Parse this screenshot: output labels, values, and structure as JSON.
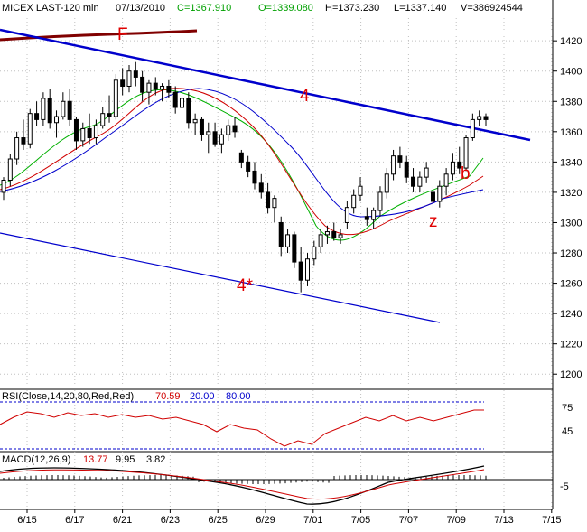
{
  "header": {
    "symbol": "MICEX LAST-120 min",
    "date": "07/13/2010",
    "close": "C=1367.910",
    "open": "O=1339.080",
    "high": "H=1373.230",
    "low": "L=1337.140",
    "volume": "V=386924544"
  },
  "colors": {
    "background": "#ffffff",
    "grid": "#c0c0c0",
    "candle": "#000000",
    "ma_green": "#00b000",
    "ma_red": "#d00000",
    "ma_blue": "#0000cc",
    "trendline": "#0000cc",
    "annotation": "#e00000",
    "f_line": "#800000",
    "rsi_line": "#d00000",
    "rsi_20": "#0000cc",
    "rsi_80": "#0000cc"
  },
  "rsi": {
    "label_prefix": "RSI(Close,14,20,80,Red,Red)",
    "value": "70.59",
    "lower": "20.00",
    "upper": "80.00",
    "ticks": [
      "75",
      "45"
    ]
  },
  "macd": {
    "label_prefix": "MACD(12,26,9)",
    "value": "13.77",
    "signal": "9.95",
    "hist": "3.82",
    "ticks": [
      "-5"
    ]
  },
  "chart_data": {
    "type": "candlestick",
    "ylim": [
      1190,
      1435
    ],
    "yticks": [
      1200,
      1220,
      1240,
      1260,
      1280,
      1300,
      1320,
      1340,
      1360,
      1380,
      1400,
      1420
    ],
    "xticks": [
      "6/15",
      "6/17",
      "6/21",
      "6/23",
      "6/25",
      "6/29",
      "7/01",
      "7/05",
      "7/07",
      "7/09",
      "7/13",
      "7/15"
    ],
    "annotations": [
      {
        "text": "F"
      },
      {
        "text": "4"
      },
      {
        "text": "4*"
      },
      {
        "text": "b"
      },
      {
        "text": "z"
      }
    ],
    "candles": [
      [
        1320,
        1330,
        1315,
        1328
      ],
      [
        1328,
        1345,
        1324,
        1342
      ],
      [
        1342,
        1360,
        1338,
        1356
      ],
      [
        1356,
        1368,
        1348,
        1352
      ],
      [
        1352,
        1375,
        1349,
        1372
      ],
      [
        1372,
        1380,
        1364,
        1368
      ],
      [
        1368,
        1386,
        1364,
        1382
      ],
      [
        1382,
        1388,
        1362,
        1366
      ],
      [
        1366,
        1374,
        1356,
        1370
      ],
      [
        1370,
        1386,
        1368,
        1380
      ],
      [
        1380,
        1388,
        1364,
        1368
      ],
      [
        1368,
        1370,
        1348,
        1354
      ],
      [
        1354,
        1366,
        1350,
        1362
      ],
      [
        1362,
        1372,
        1352,
        1356
      ],
      [
        1356,
        1368,
        1352,
        1364
      ],
      [
        1364,
        1376,
        1362,
        1372
      ],
      [
        1372,
        1384,
        1366,
        1370
      ],
      [
        1370,
        1398,
        1368,
        1394
      ],
      [
        1394,
        1402,
        1384,
        1390
      ],
      [
        1390,
        1404,
        1386,
        1400
      ],
      [
        1400,
        1406,
        1390,
        1396
      ],
      [
        1396,
        1400,
        1380,
        1386
      ],
      [
        1386,
        1394,
        1378,
        1392
      ],
      [
        1392,
        1396,
        1384,
        1388
      ],
      [
        1388,
        1392,
        1380,
        1390
      ],
      [
        1390,
        1394,
        1382,
        1386
      ],
      [
        1386,
        1390,
        1372,
        1376
      ],
      [
        1376,
        1386,
        1370,
        1382
      ],
      [
        1382,
        1386,
        1362,
        1366
      ],
      [
        1366,
        1372,
        1358,
        1368
      ],
      [
        1368,
        1370,
        1354,
        1358
      ],
      [
        1358,
        1366,
        1346,
        1360
      ],
      [
        1360,
        1366,
        1350,
        1352
      ],
      [
        1352,
        1362,
        1346,
        1358
      ],
      [
        1358,
        1368,
        1354,
        1364
      ],
      [
        1364,
        1370,
        1356,
        1360
      ],
      [
        1346,
        1348,
        1336,
        1340
      ],
      [
        1340,
        1344,
        1330,
        1334
      ],
      [
        1334,
        1340,
        1322,
        1326
      ],
      [
        1326,
        1332,
        1316,
        1320
      ],
      [
        1320,
        1326,
        1306,
        1310
      ],
      [
        1310,
        1318,
        1300,
        1316
      ],
      [
        1300,
        1304,
        1278,
        1284
      ],
      [
        1284,
        1296,
        1280,
        1292
      ],
      [
        1292,
        1294,
        1270,
        1274
      ],
      [
        1274,
        1284,
        1254,
        1262
      ],
      [
        1262,
        1280,
        1258,
        1276
      ],
      [
        1276,
        1288,
        1272,
        1284
      ],
      [
        1284,
        1296,
        1280,
        1292
      ],
      [
        1292,
        1298,
        1286,
        1294
      ],
      [
        1294,
        1300,
        1288,
        1290
      ],
      [
        1290,
        1296,
        1286,
        1292
      ],
      [
        1300,
        1314,
        1296,
        1310
      ],
      [
        1310,
        1322,
        1306,
        1318
      ],
      [
        1318,
        1330,
        1314,
        1324
      ],
      [
        1304,
        1310,
        1298,
        1302
      ],
      [
        1302,
        1310,
        1296,
        1308
      ],
      [
        1308,
        1324,
        1304,
        1320
      ],
      [
        1320,
        1336,
        1316,
        1332
      ],
      [
        1332,
        1348,
        1328,
        1344
      ],
      [
        1344,
        1350,
        1336,
        1340
      ],
      [
        1340,
        1344,
        1326,
        1330
      ],
      [
        1330,
        1336,
        1320,
        1324
      ],
      [
        1324,
        1334,
        1320,
        1330
      ],
      [
        1330,
        1340,
        1326,
        1336
      ],
      [
        1320,
        1324,
        1310,
        1314
      ],
      [
        1314,
        1328,
        1310,
        1324
      ],
      [
        1324,
        1336,
        1318,
        1332
      ],
      [
        1332,
        1346,
        1328,
        1340
      ],
      [
        1340,
        1350,
        1332,
        1336
      ],
      [
        1336,
        1358,
        1334,
        1356
      ],
      [
        1356,
        1372,
        1354,
        1368
      ],
      [
        1368,
        1374,
        1364,
        1370
      ],
      [
        1370,
        1372,
        1364,
        1368
      ]
    ]
  }
}
